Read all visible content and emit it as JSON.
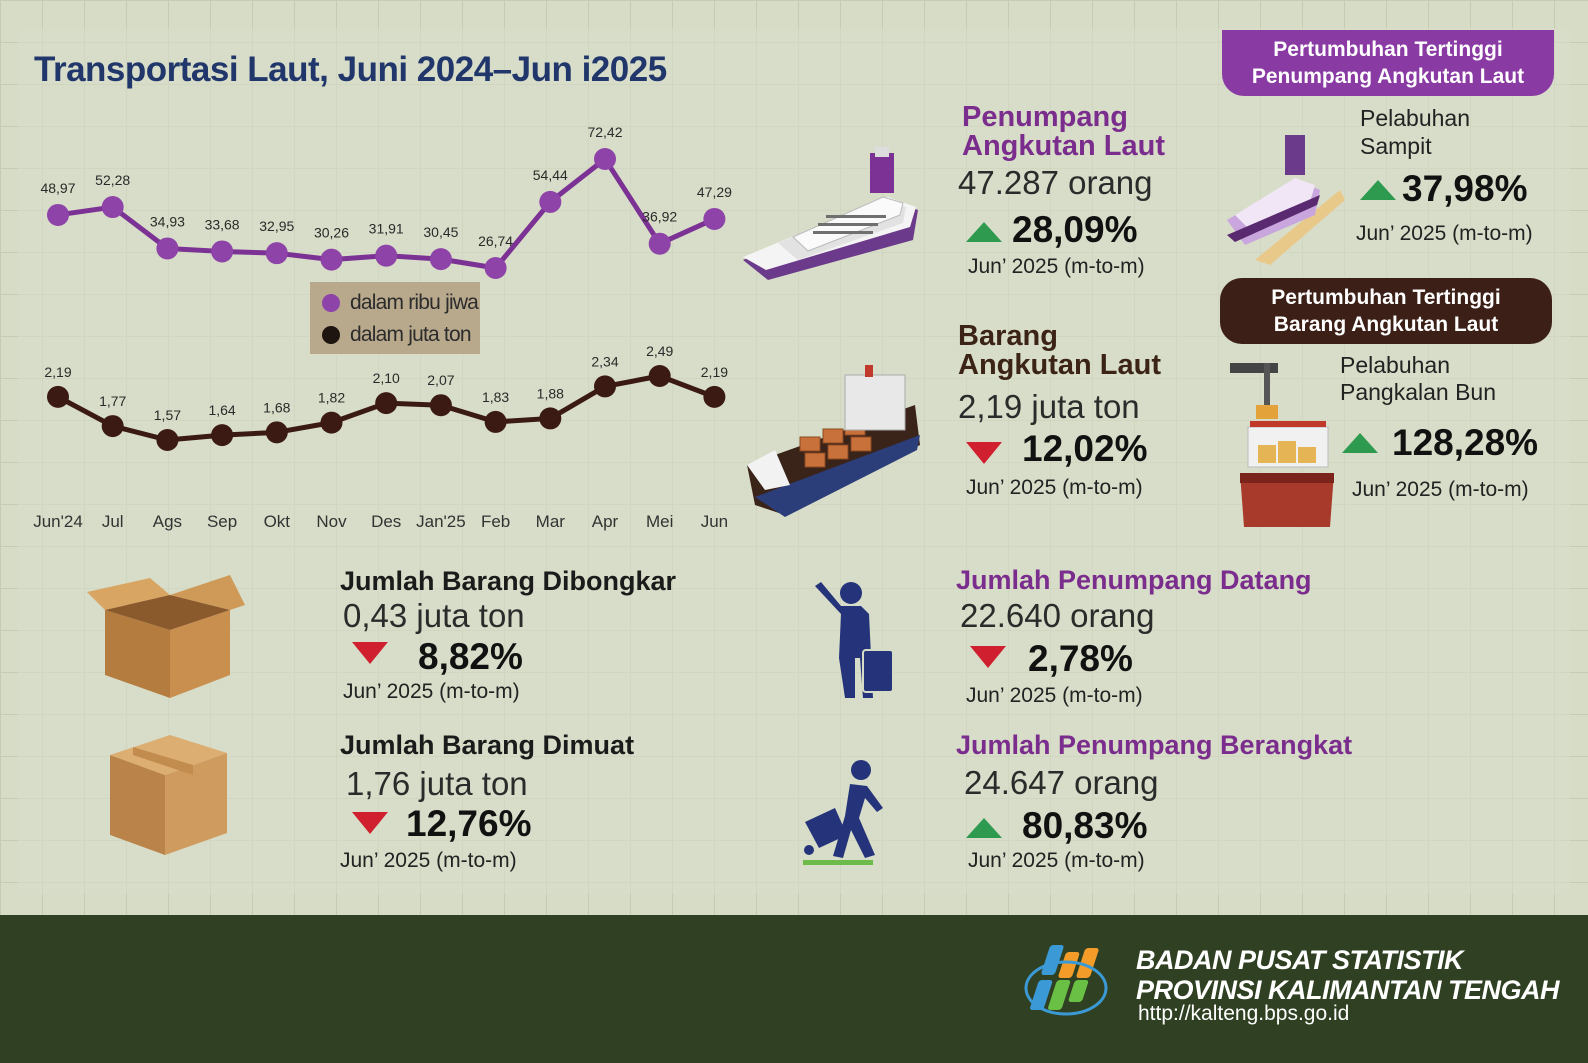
{
  "title": "Transportasi Laut, Juni 2024–Jun i2025",
  "chart_data": {
    "type": "line",
    "categories": [
      "Jun'24",
      "Jul",
      "Ags",
      "Sep",
      "Okt",
      "Nov",
      "Des",
      "Jan'25",
      "Feb",
      "Mar",
      "Apr",
      "Mei",
      "Jun"
    ],
    "series": [
      {
        "name": "dalam ribu jiwa",
        "color": "#7b3294",
        "values": [
          48.97,
          52.28,
          34.93,
          33.68,
          32.95,
          30.26,
          31.91,
          30.45,
          26.74,
          54.44,
          72.42,
          36.92,
          47.29
        ],
        "labels": [
          "48,97",
          "52,28",
          "34,93",
          "33,68",
          "32,95",
          "30,26",
          "31,91",
          "30,45",
          "26,74",
          "54,44",
          "72,42",
          "36,92",
          "47,29"
        ]
      },
      {
        "name": "dalam juta ton",
        "color": "#3b1a14",
        "values": [
          2.19,
          1.77,
          1.57,
          1.64,
          1.68,
          1.82,
          2.1,
          2.07,
          1.83,
          1.88,
          2.34,
          2.49,
          2.19
        ],
        "labels": [
          "2,19",
          "1,77",
          "1,57",
          "1,64",
          "1,68",
          "1,82",
          "2,10",
          "2,07",
          "1,83",
          "1,88",
          "2,34",
          "2,49",
          "2,19"
        ]
      }
    ]
  },
  "passengers": {
    "title_line1": "Penumpang",
    "title_line2": "Angkutan Laut",
    "value": "47.287 orang",
    "pct": "28,09%",
    "trend": "up",
    "period": "Jun’ 2025 (m-to-m)"
  },
  "goods": {
    "title_line1": "Barang",
    "title_line2": "Angkutan Laut",
    "value": "2,19 juta ton",
    "pct": "12,02%",
    "trend": "down",
    "period": "Jun’ 2025 (m-to-m)"
  },
  "highest_passenger": {
    "badge_line1": "Pertumbuhan Tertinggi",
    "badge_line2": "Penumpang Angkutan Laut",
    "port_line1": "Pelabuhan",
    "port_line2": "Sampit",
    "pct": "37,98%",
    "period": "Jun’ 2025 (m-to-m)"
  },
  "highest_goods": {
    "badge_line1": "Pertumbuhan Tertinggi",
    "badge_line2": "Barang Angkutan Laut",
    "port_line1": "Pelabuhan",
    "port_line2": "Pangkalan Bun",
    "pct": "128,28%",
    "period": "Jun’ 2025 (m-to-m)"
  },
  "unloaded": {
    "title": "Jumlah Barang Dibongkar",
    "value": "0,43 juta ton",
    "pct": "8,82%",
    "trend": "down",
    "period": "Jun’ 2025 (m-to-m)"
  },
  "loaded": {
    "title": "Jumlah Barang Dimuat",
    "value": "1,76 juta ton",
    "pct": "12,76%",
    "trend": "down",
    "period": "Jun’ 2025 (m-to-m)"
  },
  "arriving": {
    "title": "Jumlah Penumpang Datang",
    "value": "22.640 orang",
    "pct": "2,78%",
    "trend": "down",
    "period": "Jun’ 2025 (m-to-m)"
  },
  "departing": {
    "title": "Jumlah Penumpang Berangkat",
    "value": "24.647 orang",
    "pct": "80,83%",
    "trend": "up",
    "period": "Jun’ 2025 (m-to-m)"
  },
  "footer": {
    "org_line1": "BADAN PUSAT STATISTIK",
    "org_line2": "PROVINSI KALIMANTAN TENGAH",
    "url": "http://kalteng.bps.go.id"
  },
  "icons": {
    "cruise": "cruise-ship-icon",
    "cargo": "cargo-ship-icon",
    "box_open": "open-box-icon",
    "box_closed": "closed-box-icon",
    "traveler": "traveler-icon",
    "traveler_walking": "walking-traveler-icon",
    "crane": "crane-ship-icon"
  }
}
